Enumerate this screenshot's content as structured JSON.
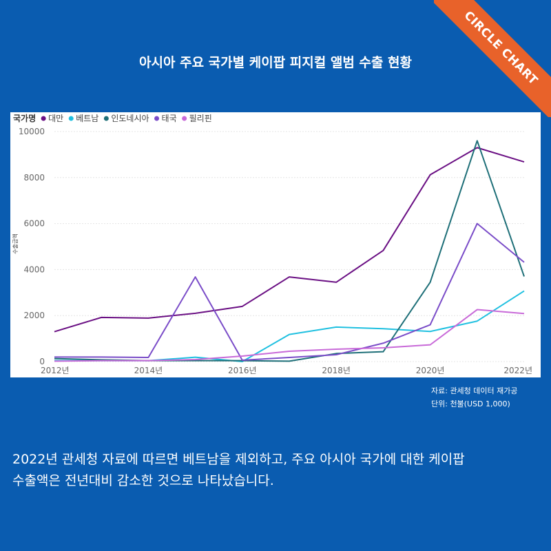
{
  "badge": "CIRCLE CHART",
  "title": "아시아 주요 국가별 케이팝 피지컬 앨범 수출 현황",
  "chart_data": {
    "type": "line",
    "legend_title": "국가명",
    "legend_position": "top-left",
    "ylabel": "수출금액",
    "xlabel": "",
    "x": [
      2012,
      2013,
      2014,
      2015,
      2016,
      2017,
      2018,
      2019,
      2020,
      2021,
      2022
    ],
    "x_ticks": [
      "2012년",
      "2014년",
      "2016년",
      "2018년",
      "2020년",
      "2022년"
    ],
    "y_ticks": [
      "0",
      "2000",
      "4000",
      "6000",
      "8000",
      "10000"
    ],
    "ylim": [
      0,
      10000
    ],
    "grid": true,
    "series": [
      {
        "name": "대만",
        "color": "#6a0f83",
        "values": [
          1300,
          1920,
          1890,
          2100,
          2400,
          3680,
          3450,
          4830,
          8120,
          9300,
          8680
        ]
      },
      {
        "name": "베트남",
        "color": "#1fc0e0",
        "values": [
          40,
          40,
          40,
          190,
          0,
          1180,
          1500,
          1430,
          1310,
          1760,
          3070
        ]
      },
      {
        "name": "인도네시아",
        "color": "#1e6f78",
        "values": [
          130,
          80,
          40,
          40,
          40,
          20,
          350,
          430,
          3450,
          9600,
          3700
        ]
      },
      {
        "name": "태국",
        "color": "#7a4cc8",
        "values": [
          200,
          200,
          180,
          3680,
          60,
          180,
          300,
          800,
          1600,
          6000,
          4320
        ]
      },
      {
        "name": "필리핀",
        "color": "#c869d8",
        "values": [
          20,
          40,
          40,
          90,
          240,
          450,
          540,
          600,
          730,
          2260,
          2090
        ]
      }
    ]
  },
  "source_lines": [
    "자료: 관세청 데이터 재가공",
    "단위: 천불(USD 1,000)"
  ],
  "summary_lines": [
    "2022년 관세청 자료에 따르면 베트남을 제외하고, 주요 아시아 국가에 대한 케이팝",
    "수출액은 전년대비 감소한 것으로 나타났습니다."
  ]
}
